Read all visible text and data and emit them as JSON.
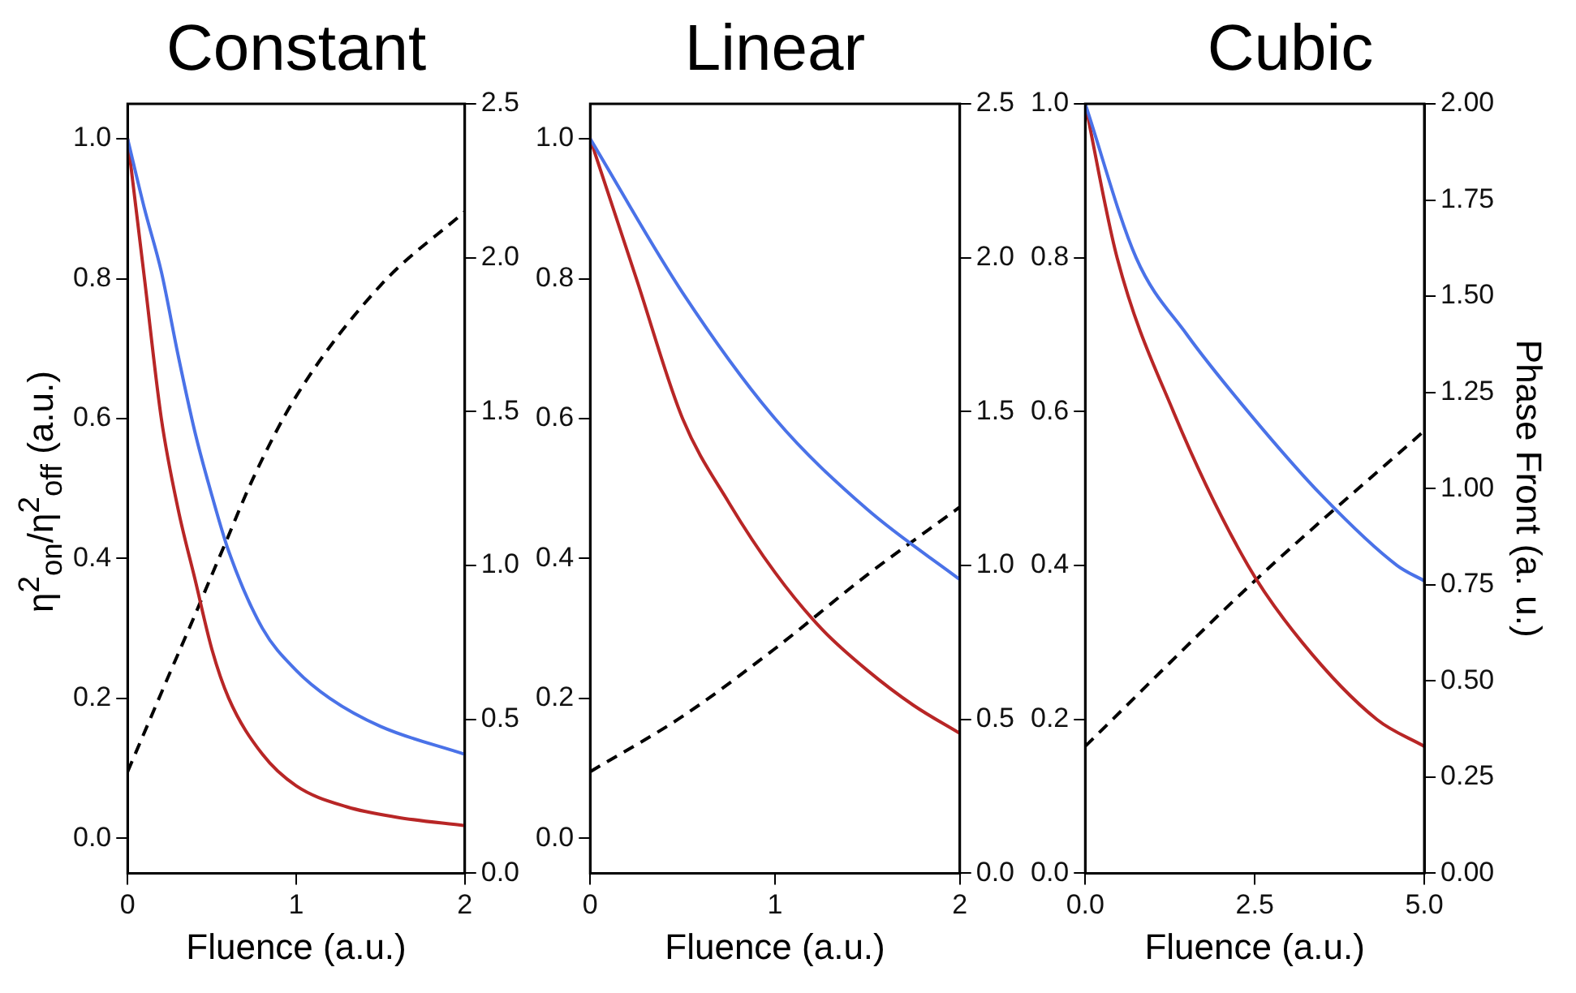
{
  "chart_data": [
    {
      "type": "line",
      "title": "Constant",
      "xlabel": "Fluence (a.u.)",
      "ylabel": "η$^{2}$$_{on}$/η$^{2}$$_{off}$ (a.u.)",
      "grid": false,
      "marker": "none",
      "xlim": [
        0,
        2
      ],
      "xticks": [
        0,
        1,
        2
      ],
      "ylim": [
        -0.05,
        1.05
      ],
      "yticks": [
        {
          "value": 0,
          "label": "0.0"
        },
        {
          "value": 0.2,
          "label": "0.2"
        },
        {
          "value": 0.4,
          "label": "0.4"
        },
        {
          "value": 0.6,
          "label": "0.6"
        },
        {
          "value": 0.8,
          "label": "0.8"
        },
        {
          "value": 1,
          "label": "1.0"
        }
      ],
      "y2lim": [
        0,
        2.5
      ],
      "y2ticks": [
        {
          "value": 0,
          "label": "0.0"
        },
        {
          "value": 0.5,
          "label": "0.5"
        },
        {
          "value": 1,
          "label": "1.0"
        },
        {
          "value": 1.5,
          "label": "1.5"
        },
        {
          "value": 2,
          "label": "2.0"
        },
        {
          "value": 2.5,
          "label": "2.5"
        }
      ],
      "series": [
        {
          "color": "#4a72e8",
          "x": [
            0,
            0.1,
            0.2,
            0.3,
            0.4,
            0.5,
            0.6,
            0.8,
            1.0,
            1.2,
            1.5,
            2.0
          ],
          "values": [
            1,
            0.9,
            0.81,
            0.69,
            0.58,
            0.49,
            0.41,
            0.3,
            0.24,
            0.2,
            0.16,
            0.12
          ]
        },
        {
          "color": "#b82626",
          "x": [
            0,
            0.1,
            0.2,
            0.3,
            0.4,
            0.5,
            0.6,
            0.8,
            1.0,
            1.3,
            1.6,
            2.0
          ],
          "values": [
            1,
            0.8,
            0.6,
            0.47,
            0.37,
            0.27,
            0.2,
            0.12,
            0.075,
            0.045,
            0.03,
            0.018
          ]
        },
        {
          "color": "#000000",
          "axis": "y2",
          "line_style": "dashed",
          "x": [
            0,
            0.25,
            0.4,
            0.5,
            0.57,
            0.75,
            1.0,
            1.5,
            2.0
          ],
          "values": [
            0.33,
            0.65,
            0.84,
            0.97,
            1.06,
            1.29,
            1.55,
            1.91,
            2.15
          ]
        }
      ]
    },
    {
      "type": "line",
      "title": "Linear",
      "xlabel": "Fluence (a.u.)",
      "grid": false,
      "marker": "none",
      "xlim": [
        0,
        2
      ],
      "xticks": [
        0,
        1,
        2
      ],
      "ylim": [
        -0.05,
        1.05
      ],
      "yticks": [
        {
          "value": 0,
          "label": "0.0"
        },
        {
          "value": 0.2,
          "label": "0.2"
        },
        {
          "value": 0.4,
          "label": "0.4"
        },
        {
          "value": 0.6,
          "label": "0.6"
        },
        {
          "value": 0.8,
          "label": "0.8"
        },
        {
          "value": 1,
          "label": "1.0"
        }
      ],
      "y2lim": [
        0,
        2.5
      ],
      "y2ticks": [
        {
          "value": 0,
          "label": "0.0"
        },
        {
          "value": 0.5,
          "label": "0.5"
        },
        {
          "value": 1,
          "label": "1.0"
        },
        {
          "value": 1.5,
          "label": "1.5"
        },
        {
          "value": 2,
          "label": "2.0"
        },
        {
          "value": 2.5,
          "label": "2.5"
        }
      ],
      "series": [
        {
          "color": "#4a72e8",
          "x": [
            0,
            0.5,
            1.0,
            1.5,
            2.0
          ],
          "values": [
            1,
            0.78,
            0.6,
            0.47,
            0.37
          ]
        },
        {
          "color": "#b82626",
          "x": [
            0,
            0.25,
            0.5,
            0.75,
            1.0,
            1.25,
            1.5,
            1.75,
            2.0
          ],
          "values": [
            1,
            0.8,
            0.6,
            0.48,
            0.38,
            0.3,
            0.24,
            0.19,
            0.15
          ]
        },
        {
          "color": "#000000",
          "axis": "y2",
          "line_style": "dashed",
          "x": [
            0,
            0.5,
            1.0,
            1.5,
            2.0
          ],
          "values": [
            0.33,
            0.51,
            0.73,
            0.97,
            1.19
          ]
        }
      ]
    },
    {
      "type": "line",
      "title": "Cubic",
      "xlabel": "Fluence (a.u.)",
      "y2label": "Phase Front (a. u.)",
      "grid": false,
      "marker": "none",
      "xlim": [
        0,
        5
      ],
      "xticks": [
        {
          "value": 0,
          "label": "0.0"
        },
        {
          "value": 2.5,
          "label": "2.5"
        },
        {
          "value": 5,
          "label": "5.0"
        }
      ],
      "ylim": [
        0,
        1
      ],
      "yticks": [
        {
          "value": 0,
          "label": "0.0"
        },
        {
          "value": 0.2,
          "label": "0.2"
        },
        {
          "value": 0.4,
          "label": "0.4"
        },
        {
          "value": 0.6,
          "label": "0.6"
        },
        {
          "value": 0.8,
          "label": "0.8"
        },
        {
          "value": 1,
          "label": "1.0"
        }
      ],
      "y2lim": [
        0,
        2
      ],
      "y2ticks": [
        {
          "value": 0,
          "label": "0.00"
        },
        {
          "value": 0.25,
          "label": "0.25"
        },
        {
          "value": 0.5,
          "label": "0.50"
        },
        {
          "value": 0.75,
          "label": "0.75"
        },
        {
          "value": 1,
          "label": "1.00"
        },
        {
          "value": 1.25,
          "label": "1.25"
        },
        {
          "value": 1.5,
          "label": "1.50"
        },
        {
          "value": 1.75,
          "label": "1.75"
        },
        {
          "value": 2,
          "label": "2.00"
        }
      ],
      "series": [
        {
          "color": "#4a72e8",
          "x": [
            0,
            0.75,
            1.5,
            2.4,
            3.5,
            4.6,
            5.0
          ],
          "values": [
            1,
            0.8,
            0.7,
            0.6,
            0.49,
            0.4,
            0.38
          ]
        },
        {
          "color": "#b82626",
          "x": [
            0,
            0.47,
            1.3,
            2.4,
            3.2,
            4.3,
            5.0
          ],
          "values": [
            1,
            0.8,
            0.6,
            0.4,
            0.3,
            0.2,
            0.165
          ]
        },
        {
          "color": "#000000",
          "axis": "y2",
          "line_style": "dashed",
          "x": [
            0,
            2.5,
            5.0
          ],
          "values": [
            0.33,
            0.76,
            1.15
          ]
        }
      ]
    }
  ]
}
